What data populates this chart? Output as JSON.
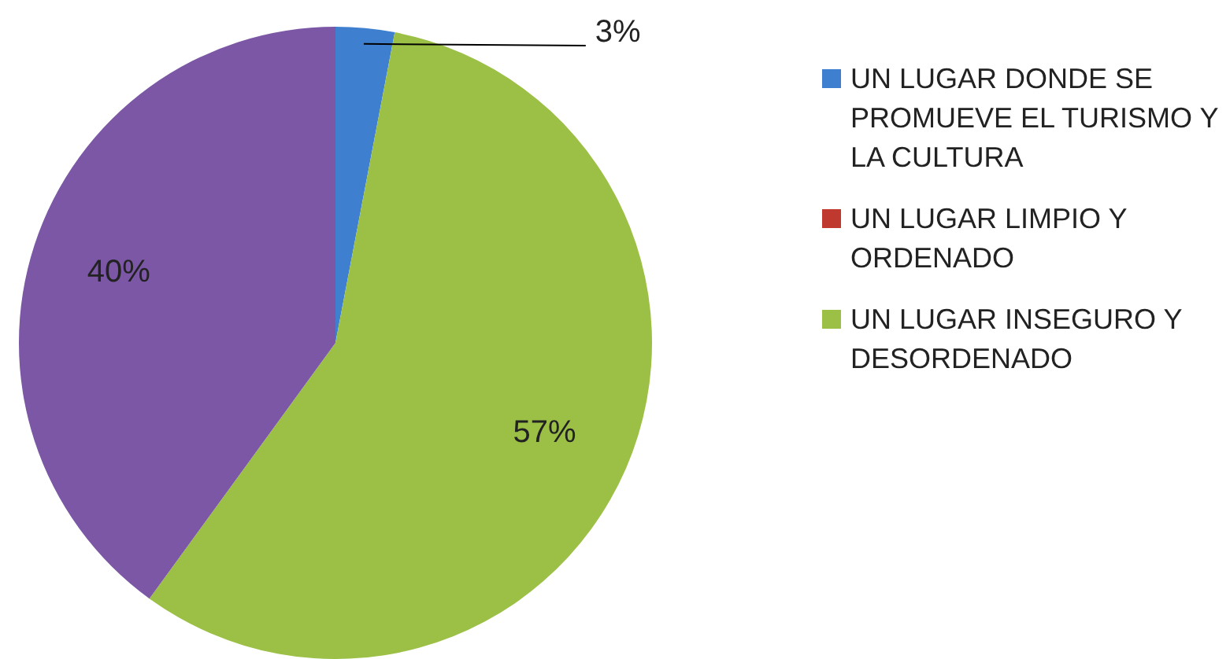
{
  "chart_data": {
    "type": "pie",
    "categories": [
      "UN LUGAR DONDE SE PROMUEVE EL TURISMO Y LA CULTURA",
      "UN LUGAR LIMPIO Y ORDENADO",
      "UN LUGAR INSEGURO Y DESORDENADO",
      null
    ],
    "values": [
      3,
      0,
      57,
      40
    ],
    "colors": [
      "#3f7fcf",
      "#c0392f",
      "#9bc045",
      "#7b57a6"
    ],
    "value_labels": [
      "3%",
      null,
      "57%",
      "40%"
    ],
    "legend": "right"
  }
}
